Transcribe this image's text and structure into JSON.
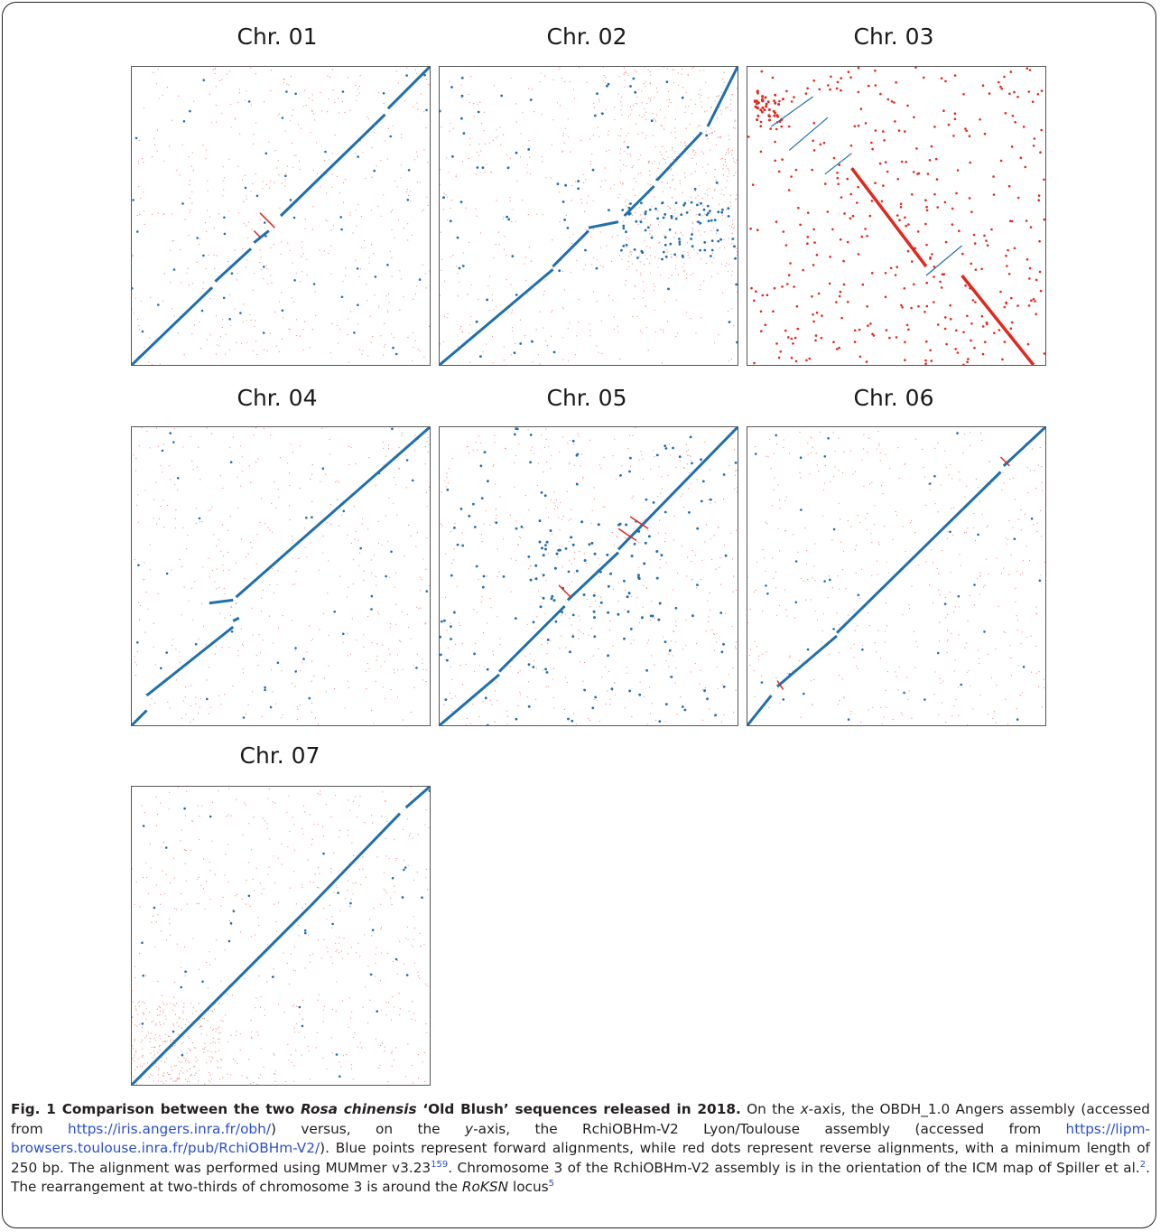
{
  "panels": [
    {
      "id": "chr01",
      "title": "Chr. 01"
    },
    {
      "id": "chr02",
      "title": "Chr. 02"
    },
    {
      "id": "chr03",
      "title": "Chr. 03"
    },
    {
      "id": "chr04",
      "title": "Chr. 04"
    },
    {
      "id": "chr05",
      "title": "Chr. 05"
    },
    {
      "id": "chr06",
      "title": "Chr. 06"
    },
    {
      "id": "chr07",
      "title": "Chr. 07"
    }
  ],
  "colors": {
    "forward": "#1f6fad",
    "reverse": "#e0281e",
    "reverse_faint": "#ef8a82",
    "link": "#2b50c8"
  },
  "caption": {
    "fig_label": "Fig. 1",
    "title_pre": "Comparison between the two ",
    "title_italic": "Rosa chinensis",
    "title_post": " ‘Old Blush’ sequences released in 2018.",
    "s1": " On the ",
    "x_italic": "x",
    "s2": "-axis, the OBDH_1.0 Angers assembly (accessed from ",
    "url1": "https://iris.angers.inra.fr/obh/",
    "s3": ") versus, on the ",
    "y_italic": "y",
    "s4": "-axis, the RchiOBHm-V2 Lyon/Toulouse assembly (accessed from ",
    "url2": "https://lipm-browsers.toulouse.inra.fr/pub/RchiOBHm-V2/",
    "s5": "). Blue points represent forward alignments, while red dots represent reverse alignments, with a minimum length of 250 bp. The alignment was performed using MUMmer v3.23",
    "ref1": "159",
    "s6": ". Chromosome 3 of the RchiOBHm-V2 assembly is in the orientation of the ICM map of Spiller et al.",
    "ref2": "2",
    "s7": ". The rearrangement at two-thirds of chromosome 3 is around the ",
    "locus_italic": "RoKSN",
    "s8": " locus",
    "ref3": "5"
  },
  "chart_data": [
    {
      "type": "scatter",
      "title": "Chr. 01",
      "series": [
        {
          "values": [
            [
              0,
              0
            ],
            [
              0.4,
              0.4
            ],
            [
              0.45,
              0.45
            ],
            [
              1,
              1
            ]
          ]
        },
        {
          "values": [
            [
              0.43,
              0.5
            ],
            [
              0.48,
              0.44
            ]
          ]
        }
      ]
    },
    {
      "type": "scatter",
      "title": "Chr. 02",
      "series": [
        {
          "values": [
            [
              0,
              0
            ],
            [
              0.5,
              0.45
            ],
            [
              0.55,
              0.6
            ],
            [
              1,
              1
            ]
          ]
        }
      ]
    },
    {
      "type": "scatter",
      "title": "Chr. 03",
      "series": [
        {
          "values": [
            [
              0.1,
              0.9
            ],
            [
              0.27,
              0.7
            ],
            [
              0.6,
              0.28
            ]
          ]
        },
        {
          "values": [
            [
              0.35,
              0.65
            ],
            [
              0.62,
              0.38
            ],
            [
              0.7,
              0.3
            ],
            [
              1,
              0
            ]
          ]
        }
      ]
    },
    {
      "type": "scatter",
      "title": "Chr. 04",
      "series": [
        {
          "values": [
            [
              0,
              0
            ],
            [
              0.35,
              0.35
            ],
            [
              1,
              1
            ]
          ]
        }
      ]
    },
    {
      "type": "scatter",
      "title": "Chr. 05",
      "series": [
        {
          "values": [
            [
              0,
              0
            ],
            [
              0.5,
              0.5
            ],
            [
              1,
              1
            ]
          ]
        },
        {
          "values": [
            [
              0.42,
              0.42
            ],
            [
              0.65,
              0.65
            ]
          ]
        }
      ]
    },
    {
      "type": "scatter",
      "title": "Chr. 06",
      "series": [
        {
          "values": [
            [
              0,
              0
            ],
            [
              0.5,
              0.5
            ],
            [
              1,
              1
            ]
          ]
        },
        {
          "values": [
            [
              0.1,
              0.1
            ],
            [
              0.9,
              0.9
            ]
          ]
        }
      ]
    },
    {
      "type": "scatter",
      "title": "Chr. 07",
      "series": [
        {
          "values": [
            [
              0,
              0
            ],
            [
              0.6,
              0.6
            ],
            [
              1,
              1
            ]
          ]
        }
      ]
    }
  ]
}
